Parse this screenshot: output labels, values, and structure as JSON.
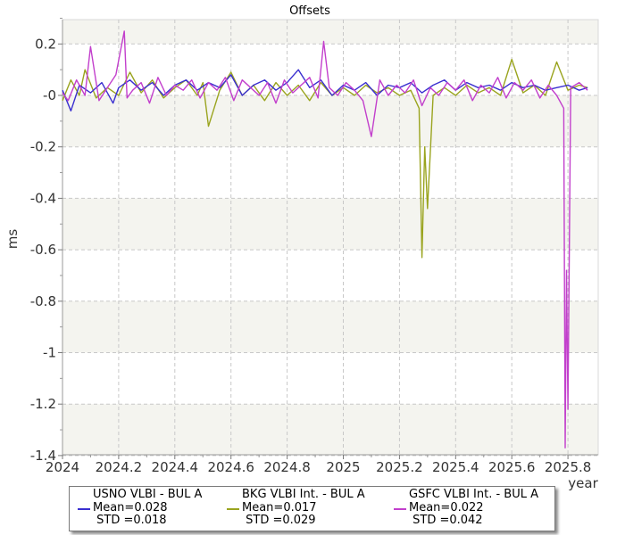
{
  "chart_data": {
    "type": "line",
    "title": "Offsets",
    "xlabel": "year",
    "ylabel": "ms",
    "xlim": [
      2024.0,
      2025.9
    ],
    "ylim": [
      -1.4,
      0.3
    ],
    "xticks": [
      2024,
      2024.2,
      2024.4,
      2024.6,
      2024.8,
      2025,
      2025.2,
      2025.4,
      2025.6,
      2025.8
    ],
    "xtick_labels": [
      "2024",
      "2024.2",
      "2024.4",
      "2024.6",
      "2024.8",
      "2025",
      "2025.2",
      "2025.4",
      "2025.6",
      "2025.8"
    ],
    "yticks": [
      0.2,
      0,
      -0.2,
      -0.4,
      -0.6,
      -0.8,
      -1,
      -1.2,
      -1.4
    ],
    "ytick_labels": [
      "0.2",
      "-0",
      "-0.2",
      "-0.4",
      "-0.6",
      "-0.8",
      "-1",
      "-1.2",
      "-1.4"
    ],
    "grid": true,
    "legend_position": "bottom",
    "series": [
      {
        "name": "USNO VLBI - BUL A",
        "mean_label": "Mean=0.028",
        "std_label": " STD =0.018",
        "color": "#3a2fd0",
        "x": [
          2024.0,
          2024.03,
          2024.06,
          2024.1,
          2024.14,
          2024.18,
          2024.2,
          2024.24,
          2024.28,
          2024.32,
          2024.36,
          2024.4,
          2024.44,
          2024.48,
          2024.52,
          2024.56,
          2024.6,
          2024.64,
          2024.68,
          2024.72,
          2024.76,
          2024.8,
          2024.84,
          2024.88,
          2024.92,
          2024.96,
          2025.0,
          2025.04,
          2025.08,
          2025.12,
          2025.16,
          2025.2,
          2025.24,
          2025.28,
          2025.32,
          2025.36,
          2025.4,
          2025.44,
          2025.48,
          2025.52,
          2025.56,
          2025.6,
          2025.64,
          2025.68,
          2025.72,
          2025.76,
          2025.8,
          2025.84,
          2025.87
        ],
        "y": [
          0.02,
          -0.06,
          0.04,
          0.01,
          0.05,
          -0.03,
          0.03,
          0.06,
          0.02,
          0.05,
          0.0,
          0.04,
          0.06,
          0.02,
          0.05,
          0.03,
          0.08,
          0.0,
          0.04,
          0.06,
          0.02,
          0.05,
          0.1,
          0.03,
          0.06,
          0.0,
          0.04,
          0.02,
          0.05,
          0.0,
          0.04,
          0.03,
          0.05,
          0.01,
          0.04,
          0.06,
          0.02,
          0.05,
          0.03,
          0.04,
          0.02,
          0.05,
          0.03,
          0.04,
          0.02,
          0.03,
          0.04,
          0.02,
          0.03
        ]
      },
      {
        "name": "BKG VLBI Int. - BUL A",
        "mean_label": "Mean=0.017",
        "std_label": " STD =0.029",
        "color": "#9aa41f",
        "x": [
          2024.0,
          2024.03,
          2024.06,
          2024.08,
          2024.12,
          2024.16,
          2024.2,
          2024.24,
          2024.28,
          2024.32,
          2024.36,
          2024.4,
          2024.44,
          2024.48,
          2024.5,
          2024.52,
          2024.56,
          2024.6,
          2024.64,
          2024.68,
          2024.72,
          2024.76,
          2024.8,
          2024.84,
          2024.88,
          2024.92,
          2024.96,
          2025.0,
          2025.04,
          2025.08,
          2025.12,
          2025.16,
          2025.2,
          2025.24,
          2025.27,
          2025.28,
          2025.29,
          2025.3,
          2025.32,
          2025.36,
          2025.4,
          2025.44,
          2025.48,
          2025.52,
          2025.56,
          2025.6,
          2025.64,
          2025.68,
          2025.72,
          2025.76,
          2025.8,
          2025.84,
          2025.87
        ],
        "y": [
          -0.02,
          0.06,
          0.0,
          0.1,
          -0.01,
          0.03,
          0.0,
          0.09,
          0.01,
          0.06,
          -0.01,
          0.03,
          0.06,
          0.0,
          0.05,
          -0.12,
          0.02,
          0.09,
          0.0,
          0.04,
          -0.02,
          0.05,
          0.0,
          0.04,
          -0.02,
          0.05,
          0.0,
          0.03,
          0.0,
          0.04,
          0.01,
          0.03,
          0.0,
          0.02,
          -0.05,
          -0.63,
          -0.2,
          -0.44,
          0.0,
          0.03,
          0.0,
          0.04,
          0.01,
          0.03,
          0.0,
          0.14,
          0.01,
          0.04,
          0.0,
          0.13,
          0.02,
          0.04,
          0.03
        ]
      },
      {
        "name": "GSFC VLBI Int. - BUL A",
        "mean_label": "Mean=0.022",
        "std_label": " STD =0.042",
        "color": "#c23fcc",
        "x": [
          2024.0,
          2024.02,
          2024.05,
          2024.08,
          2024.1,
          2024.13,
          2024.16,
          2024.19,
          2024.22,
          2024.23,
          2024.25,
          2024.28,
          2024.31,
          2024.34,
          2024.37,
          2024.4,
          2024.43,
          2024.46,
          2024.49,
          2024.52,
          2024.55,
          2024.58,
          2024.61,
          2024.64,
          2024.67,
          2024.7,
          2024.73,
          2024.76,
          2024.79,
          2024.82,
          2024.85,
          2024.88,
          2024.91,
          2024.93,
          2024.95,
          2024.98,
          2025.01,
          2025.04,
          2025.07,
          2025.1,
          2025.13,
          2025.16,
          2025.19,
          2025.22,
          2025.25,
          2025.28,
          2025.31,
          2025.34,
          2025.37,
          2025.4,
          2025.43,
          2025.46,
          2025.49,
          2025.52,
          2025.55,
          2025.58,
          2025.61,
          2025.64,
          2025.67,
          2025.7,
          2025.73,
          2025.76,
          2025.785,
          2025.79,
          2025.795,
          2025.8,
          2025.81,
          2025.84,
          2025.87
        ],
        "y": [
          0.01,
          -0.02,
          0.06,
          0.0,
          0.19,
          -0.02,
          0.03,
          0.08,
          0.25,
          -0.01,
          0.02,
          0.05,
          -0.03,
          0.07,
          0.0,
          0.04,
          0.02,
          0.06,
          -0.01,
          0.05,
          0.02,
          0.07,
          -0.02,
          0.06,
          0.03,
          0.0,
          0.05,
          -0.03,
          0.06,
          0.01,
          0.04,
          0.07,
          -0.01,
          0.21,
          0.03,
          0.0,
          0.05,
          0.02,
          -0.02,
          -0.16,
          0.06,
          0.0,
          0.04,
          0.01,
          0.06,
          -0.04,
          0.03,
          0.0,
          0.05,
          0.02,
          0.06,
          -0.02,
          0.04,
          0.01,
          0.07,
          -0.01,
          0.05,
          0.02,
          0.06,
          -0.01,
          0.04,
          0.0,
          -0.05,
          -1.37,
          -0.68,
          -1.22,
          0.03,
          0.05,
          0.02
        ]
      }
    ]
  }
}
